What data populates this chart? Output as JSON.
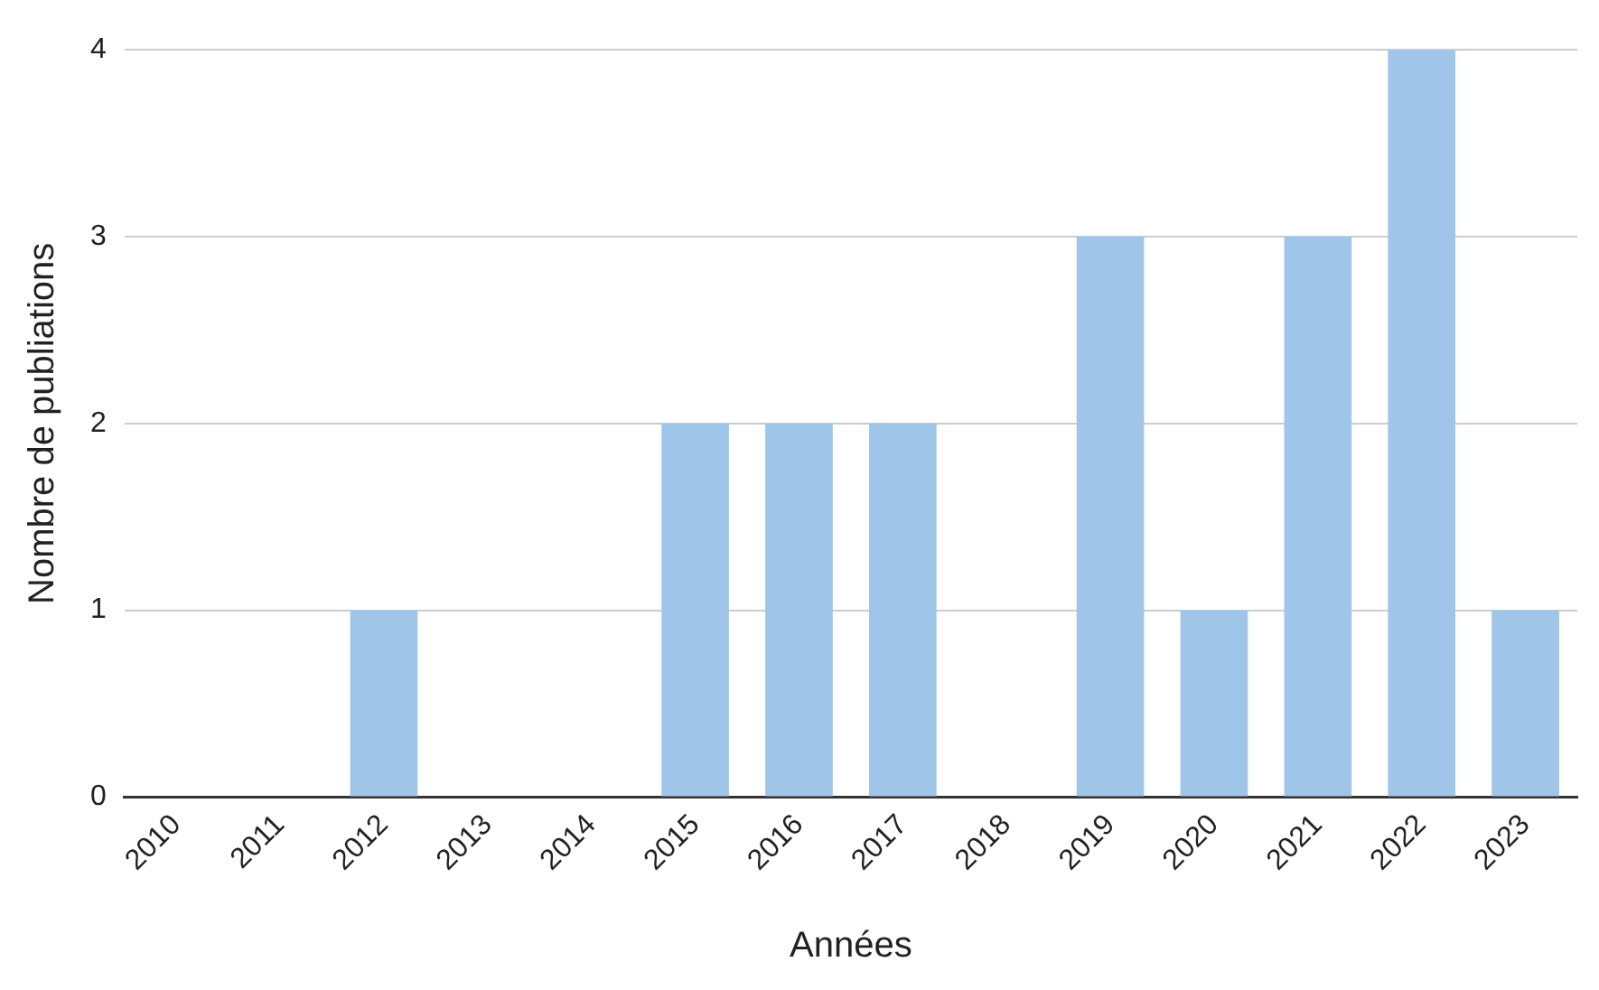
{
  "chart_data": {
    "type": "bar",
    "xlabel": "Années",
    "ylabel": "Nombre de publiations",
    "categories": [
      "2010",
      "2011",
      "2012",
      "2013",
      "2014",
      "2015",
      "2016",
      "2017",
      "2018",
      "2019",
      "2020",
      "2021",
      "2022",
      "2023"
    ],
    "values": [
      0,
      0,
      1,
      0,
      0,
      2,
      2,
      2,
      0,
      3,
      1,
      3,
      4,
      1
    ],
    "color": "#9fc5e8",
    "ylim": [
      0,
      4
    ],
    "yticks": [
      0,
      1,
      2,
      3,
      4
    ],
    "grid": "y",
    "legend": false
  }
}
